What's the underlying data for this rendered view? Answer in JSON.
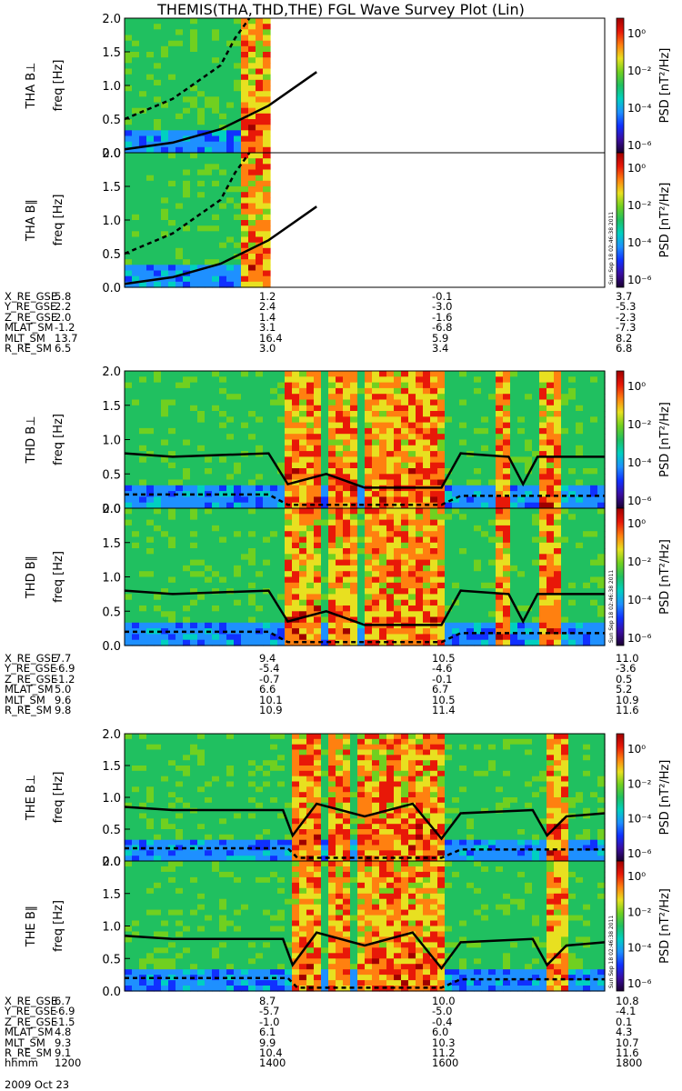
{
  "title": "THEMIS(THA,THD,THE) FGL Wave Survey Plot (Lin)",
  "colors": {
    "colormap": [
      "#1a0030",
      "#3a0da0",
      "#1030ff",
      "#1e90ff",
      "#00d0c0",
      "#20c060",
      "#70d020",
      "#e8e020",
      "#ff8010",
      "#e81808",
      "#a00000"
    ],
    "background": "#ffffff",
    "line": "#000000"
  },
  "chart_data": [
    {
      "type": "heatmap",
      "title": "THEMIS(THA,THD,THE) FGL Wave Survey Plot (Lin)",
      "ylabel": "freq [Hz]",
      "ylim": [
        0.0,
        2.0
      ],
      "yticks": [
        "0.0",
        "0.5",
        "1.0",
        "1.5",
        "2.0"
      ],
      "colorbar": {
        "label": "PSD [nT²/Hz]",
        "ticks": [
          "10⁻⁶",
          "10⁻⁴",
          "10⁻²",
          "10⁰"
        ]
      },
      "stamp": "Sun Sep 18 02:46:38 2011",
      "panels": [
        {
          "probe": "THA",
          "components": [
            "THA B⊥",
            "THA B∥"
          ],
          "ephemeris": {
            "X_RE_GSE": [
              "5.8",
              "1.2",
              "-0.1",
              "3.7"
            ],
            "Y_RE_GSE": [
              "2.2",
              "2.4",
              "-3.0",
              "-5.3"
            ],
            "Z_RE_GSE": [
              "2.0",
              "1.4",
              "-1.6",
              "-2.3"
            ],
            "MLAT_SM": [
              "-1.2",
              "3.1",
              "-6.8",
              "-7.3"
            ],
            "MLT_SM": [
              "13.7",
              "16.4",
              "5.9",
              "8.2"
            ],
            "R_RE_SM": [
              "6.5",
              "3.0",
              "3.4",
              "6.8"
            ]
          }
        },
        {
          "probe": "THD",
          "components": [
            "THD B⊥",
            "THD B∥"
          ],
          "ephemeris": {
            "X_RE_GSE": [
              "7.7",
              "9.4",
              "10.5",
              "11.0"
            ],
            "Y_RE_GSE": [
              "-6.9",
              "-5.4",
              "-4.6",
              "-3.6"
            ],
            "Z_RE_GSE": [
              "-1.2",
              "-0.7",
              "-0.1",
              "0.5"
            ],
            "MLAT_SM": [
              "5.0",
              "6.6",
              "6.7",
              "5.2"
            ],
            "MLT_SM": [
              "9.6",
              "10.1",
              "10.5",
              "10.9"
            ],
            "R_RE_SM": [
              "9.8",
              "10.9",
              "11.4",
              "11.6"
            ]
          }
        },
        {
          "probe": "THE",
          "components": [
            "THE B⊥",
            "THE B∥"
          ],
          "ephemeris": {
            "X_RE_GSE": [
              "6.7",
              "8.7",
              "10.0",
              "10.8"
            ],
            "Y_RE_GSE": [
              "-6.9",
              "-5.7",
              "-5.0",
              "-4.1"
            ],
            "Z_RE_GSE": [
              "-1.5",
              "-1.0",
              "-0.4",
              "0.1"
            ],
            "MLAT_SM": [
              "4.8",
              "6.1",
              "6.0",
              "4.3"
            ],
            "MLT_SM": [
              "9.3",
              "9.9",
              "10.3",
              "10.7"
            ],
            "R_RE_SM": [
              "9.1",
              "10.4",
              "11.2",
              "11.6"
            ]
          }
        }
      ],
      "x": {
        "label": "hhmm",
        "ticks": [
          "1200",
          "1400",
          "1600",
          "1800"
        ]
      },
      "date": "2009 Oct 23"
    }
  ]
}
